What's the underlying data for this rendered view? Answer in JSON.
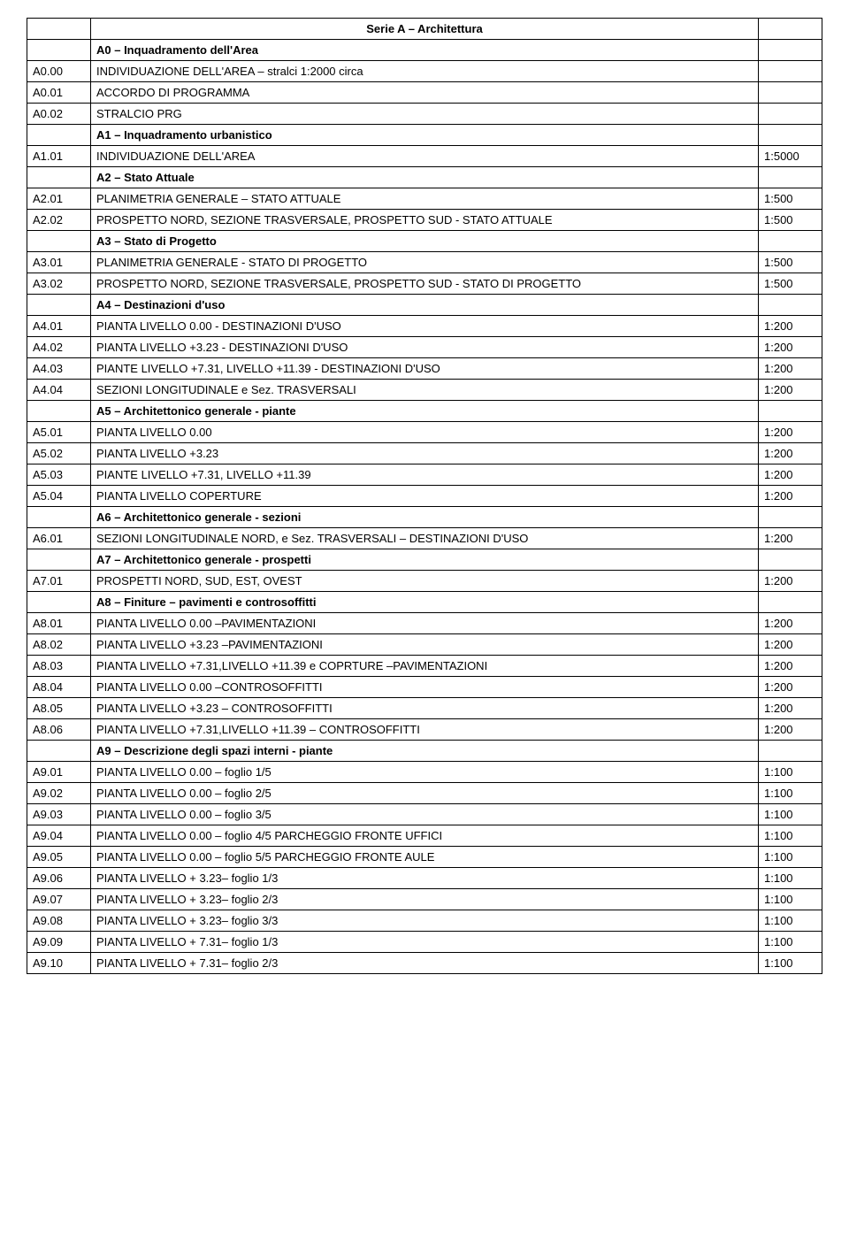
{
  "table": {
    "rows": [
      {
        "code": "",
        "desc": "Serie A – Architettura",
        "scale": "",
        "class": "title-cell"
      },
      {
        "code": "",
        "desc": "A0 – Inquadramento dell'Area",
        "scale": "",
        "class": "section-cell"
      },
      {
        "code": "A0.00",
        "desc": "INDIVIDUAZIONE DELL'AREA – stralci 1:2000 circa",
        "scale": ""
      },
      {
        "code": "A0.01",
        "desc": "ACCORDO DI PROGRAMMA",
        "scale": ""
      },
      {
        "code": "A0.02",
        "desc": "STRALCIO PRG",
        "scale": ""
      },
      {
        "code": "",
        "desc": "A1 – Inquadramento urbanistico",
        "scale": "",
        "class": "section-cell"
      },
      {
        "code": "A1.01",
        "desc": "INDIVIDUAZIONE DELL'AREA",
        "scale": "1:5000"
      },
      {
        "code": "",
        "desc": "A2 – Stato Attuale",
        "scale": "",
        "class": "section-cell"
      },
      {
        "code": "A2.01",
        "desc": "PLANIMETRIA GENERALE – STATO ATTUALE",
        "scale": "1:500"
      },
      {
        "code": "A2.02",
        "desc": "PROSPETTO NORD, SEZIONE TRASVERSALE, PROSPETTO SUD - STATO ATTUALE",
        "scale": "1:500"
      },
      {
        "code": "",
        "desc": "A3 – Stato di Progetto",
        "scale": "",
        "class": "section-cell"
      },
      {
        "code": "A3.01",
        "desc": "PLANIMETRIA GENERALE - STATO DI PROGETTO",
        "scale": "1:500"
      },
      {
        "code": "A3.02",
        "desc": "PROSPETTO NORD, SEZIONE TRASVERSALE, PROSPETTO SUD -  STATO DI PROGETTO",
        "scale": "1:500"
      },
      {
        "code": "",
        "desc": "A4 – Destinazioni d'uso",
        "scale": "",
        "class": "section-cell"
      },
      {
        "code": "A4.01",
        "desc": "PIANTA  LIVELLO 0.00 -  DESTINAZIONI D'USO",
        "scale": "1:200"
      },
      {
        "code": "A4.02",
        "desc": "PIANTA LIVELLO +3.23 - DESTINAZIONI D'USO",
        "scale": "1:200"
      },
      {
        "code": "A4.03",
        "desc": "PIANTE LIVELLO +7.31, LIVELLO +11.39 - DESTINAZIONI D'USO",
        "scale": "1:200"
      },
      {
        "code": "A4.04",
        "desc": "SEZIONI LONGITUDINALE e Sez. TRASVERSALI",
        "scale": "1:200"
      },
      {
        "code": "",
        "desc": "A5 – Architettonico generale - piante",
        "scale": "",
        "class": "section-cell"
      },
      {
        "code": "A5.01",
        "desc": "PIANTA  LIVELLO 0.00",
        "scale": "1:200"
      },
      {
        "code": "A5.02",
        "desc": "PIANTA LIVELLO +3.23",
        "scale": "1:200"
      },
      {
        "code": "A5.03",
        "desc": "PIANTE LIVELLO +7.31, LIVELLO +11.39",
        "scale": "1:200"
      },
      {
        "code": "A5.04",
        "desc": "PIANTA LIVELLO COPERTURE",
        "scale": "1:200"
      },
      {
        "code": "",
        "desc": "A6 – Architettonico generale - sezioni",
        "scale": "",
        "class": "section-cell"
      },
      {
        "code": "A6.01",
        "desc": "SEZIONI LONGITUDINALE NORD, e Sez. TRASVERSALI – DESTINAZIONI D'USO",
        "scale": "1:200"
      },
      {
        "code": "",
        "desc": "A7 – Architettonico generale - prospetti",
        "scale": "",
        "class": "section-cell"
      },
      {
        "code": "A7.01",
        "desc": "PROSPETTI NORD, SUD, EST, OVEST",
        "scale": "1:200"
      },
      {
        "code": "",
        "desc": "A8 – Finiture – pavimenti e controsoffitti",
        "scale": "",
        "class": "section-cell"
      },
      {
        "code": "A8.01",
        "desc": "PIANTA LIVELLO 0.00 –PAVIMENTAZIONI",
        "scale": "1:200"
      },
      {
        "code": "A8.02",
        "desc": "PIANTA LIVELLO +3.23 –PAVIMENTAZIONI",
        "scale": "1:200"
      },
      {
        "code": "A8.03",
        "desc": "PIANTA LIVELLO +7.31,LIVELLO +11.39 e COPRTURE  –PAVIMENTAZIONI",
        "scale": "1:200"
      },
      {
        "code": "A8.04",
        "desc": "PIANTA LIVELLO 0.00 –CONTROSOFFITTI",
        "scale": "1:200"
      },
      {
        "code": "A8.05",
        "desc": "PIANTA LIVELLO +3.23 – CONTROSOFFITTI",
        "scale": "1:200"
      },
      {
        "code": "A8.06",
        "desc": "PIANTA LIVELLO +7.31,LIVELLO +11.39 – CONTROSOFFITTI",
        "scale": "1:200"
      },
      {
        "code": "",
        "desc": "A9 – Descrizione degli spazi interni - piante",
        "scale": "",
        "class": "section-cell"
      },
      {
        "code": "A9.01",
        "desc": "PIANTA  LIVELLO 0.00 – foglio 1/5",
        "scale": "1:100"
      },
      {
        "code": "A9.02",
        "desc": "PIANTA  LIVELLO 0.00 – foglio 2/5",
        "scale": "1:100"
      },
      {
        "code": "A9.03",
        "desc": "PIANTA  LIVELLO 0.00 – foglio 3/5",
        "scale": "1:100"
      },
      {
        "code": "A9.04",
        "desc": "PIANTA  LIVELLO 0.00 – foglio 4/5 PARCHEGGIO FRONTE UFFICI",
        "scale": "1:100"
      },
      {
        "code": "A9.05",
        "desc": "PIANTA  LIVELLO 0.00 – foglio 5/5 PARCHEGGIO FRONTE AULE",
        "scale": "1:100"
      },
      {
        "code": "A9.06",
        "desc": "PIANTA  LIVELLO + 3.23– foglio 1/3",
        "scale": "1:100"
      },
      {
        "code": "A9.07",
        "desc": "PIANTA  LIVELLO + 3.23– foglio 2/3",
        "scale": "1:100"
      },
      {
        "code": "A9.08",
        "desc": "PIANTA  LIVELLO + 3.23– foglio 3/3",
        "scale": "1:100"
      },
      {
        "code": "A9.09",
        "desc": "PIANTA  LIVELLO + 7.31– foglio 1/3",
        "scale": "1:100"
      },
      {
        "code": "A9.10",
        "desc": "PIANTA  LIVELLO + 7.31– foglio 2/3",
        "scale": "1:100"
      }
    ]
  }
}
